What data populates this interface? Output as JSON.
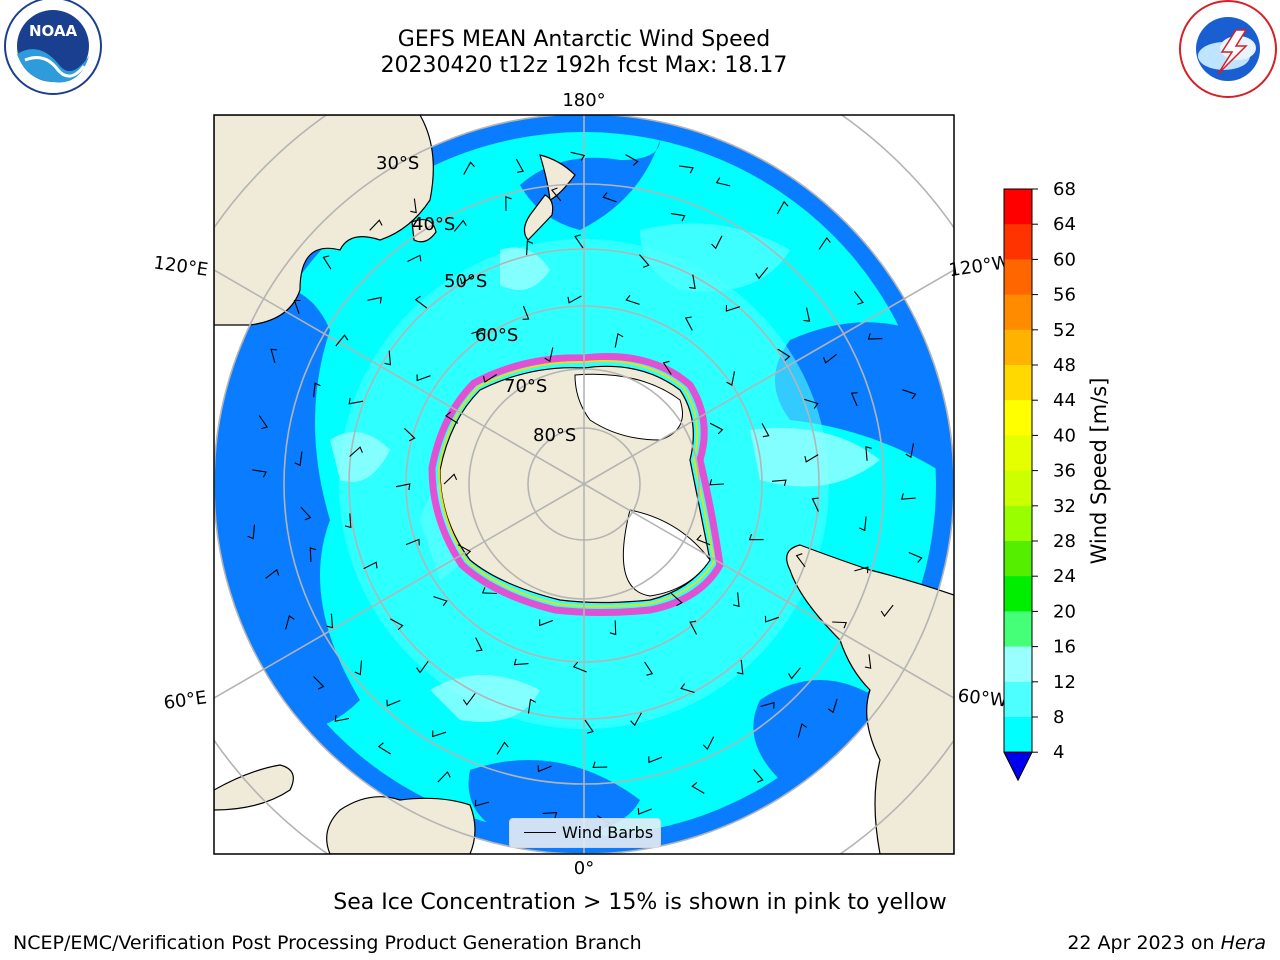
{
  "title": {
    "line1": "GEFS MEAN Antarctic Wind Speed",
    "line2": "20230420 t12z 192h fcst   Max: 18.17"
  },
  "logos": {
    "left": "noaa-logo",
    "right": "national-weather-service-logo"
  },
  "map": {
    "projection": "south-polar-stereographic",
    "lon_labels": [
      "180°",
      "120°E",
      "120°W",
      "60°E",
      "60°W",
      "0°"
    ],
    "lat_labels": [
      "30°S",
      "40°S",
      "50°S",
      "60°S",
      "70°S",
      "80°S"
    ],
    "legend_label": "Wind Barbs",
    "colors": {
      "land": "#efebd8",
      "ice_edge": "#ff33cc",
      "speed_4_8": "#0a7cff",
      "speed_8_12": "#00ffff",
      "speed_12_16": "#4dffff",
      "speed_16_20": "#99ffff"
    }
  },
  "colorbar": {
    "label": "Wind Speed [m/s]",
    "ticks": [
      "68",
      "64",
      "60",
      "56",
      "52",
      "48",
      "44",
      "40",
      "36",
      "32",
      "28",
      "24",
      "20",
      "16",
      "12",
      "8",
      "4"
    ],
    "colors": [
      "#ff0000",
      "#ff3300",
      "#ff6600",
      "#ff8c00",
      "#ffb300",
      "#ffd900",
      "#ffff00",
      "#e6ff00",
      "#ccff00",
      "#99ff00",
      "#55ee00",
      "#00ee00",
      "#44ff77",
      "#99ffff",
      "#4dffff",
      "#00ffff",
      "#0a7cff"
    ],
    "extend_color": "#0000ee"
  },
  "caption": "Sea Ice Concentration > 15% is shown in pink to yellow",
  "footer": {
    "left": "NCEP/EMC/Verification Post Processing Product Generation Branch",
    "right_prefix": "22 Apr 2023 on ",
    "right_italic": "Hera"
  }
}
